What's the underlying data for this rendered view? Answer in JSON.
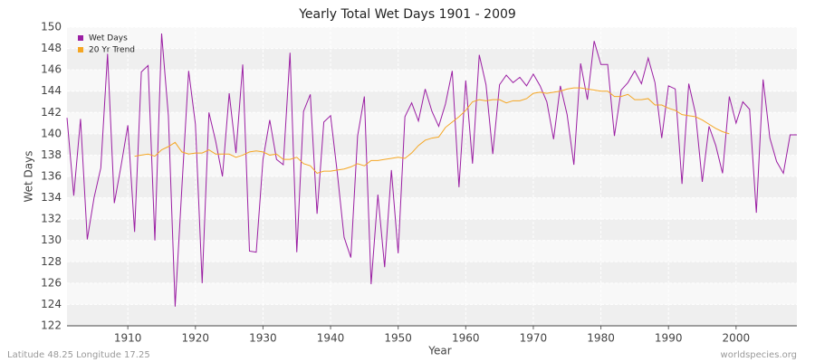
{
  "chart_data": {
    "type": "line",
    "title": "Yearly Total Wet Days 1901 - 2009",
    "x_label": "Year",
    "y_label": "Wet Days",
    "footer_left": "Latitude 48.25 Longitude 17.25",
    "footer_right": "worldspecies.org",
    "legend": "top-left",
    "grid": true,
    "x": [
      1901,
      1902,
      1903,
      1904,
      1905,
      1906,
      1907,
      1908,
      1909,
      1910,
      1911,
      1912,
      1913,
      1914,
      1915,
      1916,
      1917,
      1918,
      1919,
      1920,
      1921,
      1922,
      1923,
      1924,
      1925,
      1926,
      1927,
      1928,
      1929,
      1930,
      1931,
      1932,
      1933,
      1934,
      1935,
      1936,
      1937,
      1938,
      1939,
      1940,
      1941,
      1942,
      1943,
      1944,
      1945,
      1946,
      1947,
      1948,
      1949,
      1950,
      1951,
      1952,
      1953,
      1954,
      1955,
      1956,
      1957,
      1958,
      1959,
      1960,
      1961,
      1962,
      1963,
      1964,
      1965,
      1966,
      1967,
      1968,
      1969,
      1970,
      1971,
      1972,
      1973,
      1974,
      1975,
      1976,
      1977,
      1978,
      1979,
      1980,
      1981,
      1982,
      1983,
      1984,
      1985,
      1986,
      1987,
      1988,
      1989,
      1990,
      1991,
      1992,
      1993,
      1994,
      1995,
      1996,
      1997,
      1998,
      1999,
      2000,
      2001,
      2002,
      2003,
      2004,
      2005,
      2006,
      2007,
      2008,
      2009
    ],
    "series": [
      {
        "name": "Wet Days",
        "color": "#9b1fa3",
        "values": [
          141.5,
          134.2,
          141.4,
          130.1,
          134,
          136.8,
          147.5,
          133.5,
          137,
          140.8,
          130.8,
          145.8,
          146.4,
          130,
          149.4,
          141.7,
          123.8,
          135,
          145.9,
          140.9,
          126,
          142,
          139.3,
          136,
          143.8,
          138.2,
          146.5,
          129,
          128.9,
          137.6,
          141.3,
          137.6,
          137.1,
          147.6,
          128.9,
          142.1,
          143.7,
          132.5,
          141.1,
          141.7,
          136.3,
          130.3,
          128.4,
          139.8,
          143.5,
          125.9,
          134.3,
          127.5,
          136.6,
          128.8,
          141.6,
          142.9,
          141.2,
          144.2,
          142.1,
          140.7,
          142.8,
          145.9,
          135,
          145,
          137.2,
          147.4,
          144.6,
          138.1,
          144.6,
          145.5,
          144.8,
          145.3,
          144.5,
          145.6,
          144.5,
          143,
          139.5,
          144.5,
          141.8,
          137.1,
          146.6,
          143.2,
          148.7,
          146.5,
          146.5,
          139.8,
          144.1,
          144.8,
          145.9,
          144.7,
          147.1,
          144.8,
          139.6,
          144.5,
          144.2,
          135.3,
          144.7,
          141.9,
          135.5,
          140.7,
          138.9,
          136.3,
          143.5,
          141,
          143,
          142.3,
          132.6,
          145.1,
          139.6,
          137.4,
          136.3,
          139.9,
          139.9
        ]
      },
      {
        "name": "20 Yr Trend",
        "color": "#f5a623",
        "values": [
          null,
          null,
          null,
          null,
          null,
          null,
          null,
          null,
          null,
          null,
          137.9,
          138.0,
          138.1,
          137.9,
          138.5,
          138.8,
          139.2,
          138.3,
          138.1,
          138.2,
          138.2,
          138.5,
          138.1,
          138.1,
          138.1,
          137.8,
          138.0,
          138.3,
          138.4,
          138.3,
          138.0,
          138.1,
          137.6,
          137.6,
          137.8,
          137.2,
          137.0,
          136.3,
          136.5,
          136.5,
          136.6,
          136.7,
          136.9,
          137.2,
          137.0,
          137.5,
          137.5,
          137.6,
          137.7,
          137.8,
          137.7,
          138.2,
          138.9,
          139.4,
          139.6,
          139.7,
          140.6,
          141.1,
          141.6,
          142.2,
          143.0,
          143.2,
          143.1,
          143.2,
          143.2,
          142.9,
          143.1,
          143.1,
          143.3,
          143.8,
          143.9,
          143.8,
          143.9,
          144.0,
          144.2,
          144.3,
          144.3,
          144.2,
          144.1,
          144.0,
          144.0,
          143.5,
          143.5,
          143.7,
          143.2,
          143.2,
          143.3,
          142.7,
          142.7,
          142.4,
          142.2,
          141.8,
          141.7,
          141.6,
          141.3,
          140.9,
          140.5,
          140.2,
          140.0,
          null,
          null,
          null,
          null,
          null,
          null,
          null,
          null,
          null,
          null
        ]
      }
    ],
    "xlim": [
      1901,
      2009
    ],
    "xticks": [
      1910,
      1920,
      1930,
      1940,
      1950,
      1960,
      1970,
      1980,
      1990,
      2000
    ],
    "ylim": [
      122,
      150
    ],
    "yticks": [
      122,
      124,
      126,
      128,
      130,
      132,
      134,
      136,
      138,
      140,
      142,
      144,
      146,
      148,
      150
    ]
  }
}
